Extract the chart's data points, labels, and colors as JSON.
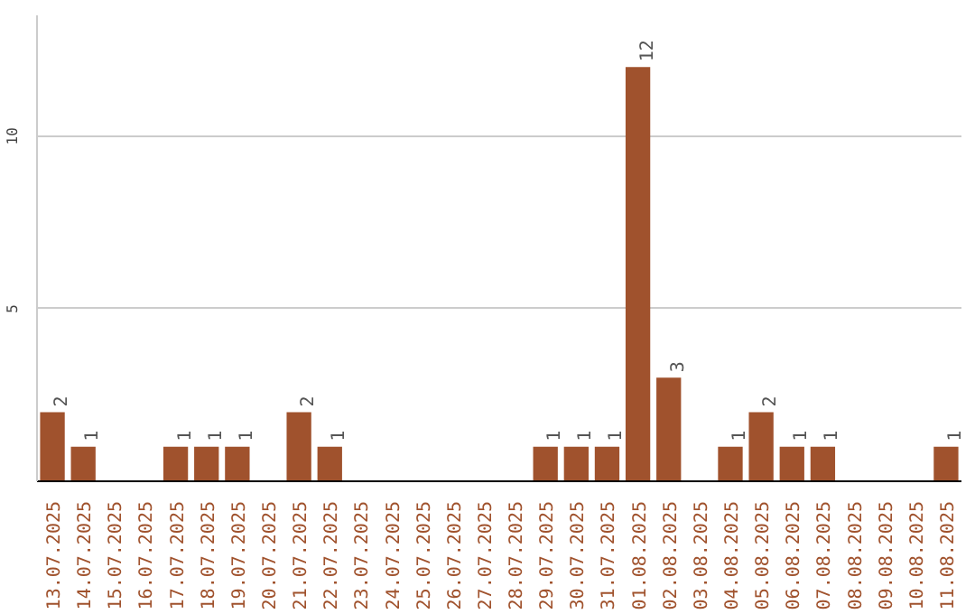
{
  "chart_data": {
    "type": "bar",
    "categories": [
      "13.07.2025",
      "14.07.2025",
      "15.07.2025",
      "16.07.2025",
      "17.07.2025",
      "18.07.2025",
      "19.07.2025",
      "20.07.2025",
      "21.07.2025",
      "22.07.2025",
      "23.07.2025",
      "24.07.2025",
      "25.07.2025",
      "26.07.2025",
      "27.07.2025",
      "28.07.2025",
      "29.07.2025",
      "30.07.2025",
      "31.07.2025",
      "01.08.2025",
      "02.08.2025",
      "03.08.2025",
      "04.08.2025",
      "05.08.2025",
      "06.08.2025",
      "07.08.2025",
      "08.08.2025",
      "09.08.2025",
      "10.08.2025",
      "11.08.2025"
    ],
    "values": [
      2,
      1,
      0,
      0,
      1,
      1,
      1,
      0,
      2,
      1,
      0,
      0,
      0,
      0,
      0,
      0,
      1,
      1,
      1,
      12,
      3,
      0,
      1,
      2,
      1,
      1,
      0,
      0,
      0,
      1
    ],
    "value_labels": [
      "2",
      "1",
      null,
      null,
      "1",
      "1",
      "1",
      null,
      "2",
      "1",
      null,
      null,
      null,
      null,
      null,
      null,
      "1",
      "1",
      "1",
      "12",
      "3",
      null,
      "1",
      "2",
      "1",
      "1",
      null,
      null,
      null,
      "1"
    ],
    "color": "#a0522d",
    "ylim": [
      0,
      13.5
    ],
    "yticks": [
      5,
      10
    ],
    "grid": "y",
    "legend": false
  }
}
